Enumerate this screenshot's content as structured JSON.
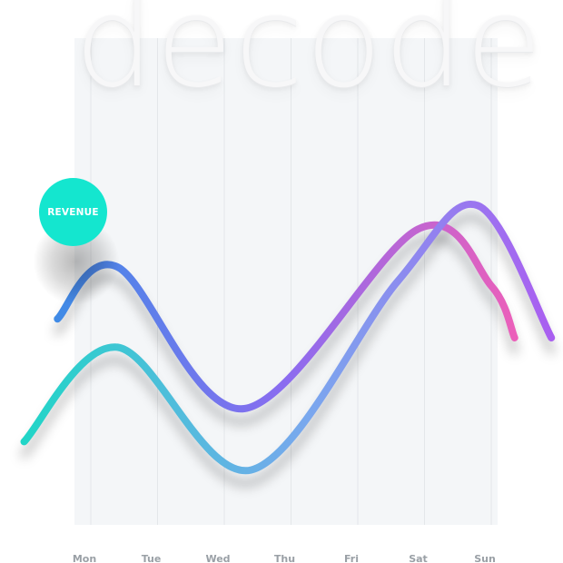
{
  "brand": {
    "text": "decode"
  },
  "badge": {
    "label": "REVENUE"
  },
  "colors": {
    "badge": "#14e6cf",
    "series_1_start": "#3f8be6",
    "series_1_mid": "#8b6cf0",
    "series_1_end": "#ec5fb9",
    "series_2_start": "#1fd6c6",
    "series_2_mid": "#7aa7ee",
    "series_2_end": "#a95ff0",
    "gridline": "#e4e7ea",
    "panel": "#f4f6f8"
  },
  "chart_data": {
    "type": "line",
    "smooth": true,
    "categories": [
      "Mon",
      "Tue",
      "Wed",
      "Thu",
      "Fri",
      "Sat",
      "Sun"
    ],
    "title": "",
    "xlabel": "",
    "ylabel": "",
    "grid": {
      "vertical": true,
      "horizontal": false
    },
    "ylim": [
      0,
      100
    ],
    "series": [
      {
        "x": [
          -0.5,
          0.4,
          2.3,
          4.9,
          6.0,
          6.35
        ],
        "values": [
          44,
          55,
          25,
          63,
          51,
          40
        ]
      },
      {
        "x": [
          -1.0,
          0.4,
          2.4,
          4.6,
          5.8,
          6.9
        ],
        "values": [
          18,
          38,
          12,
          52,
          68,
          40
        ]
      }
    ]
  }
}
